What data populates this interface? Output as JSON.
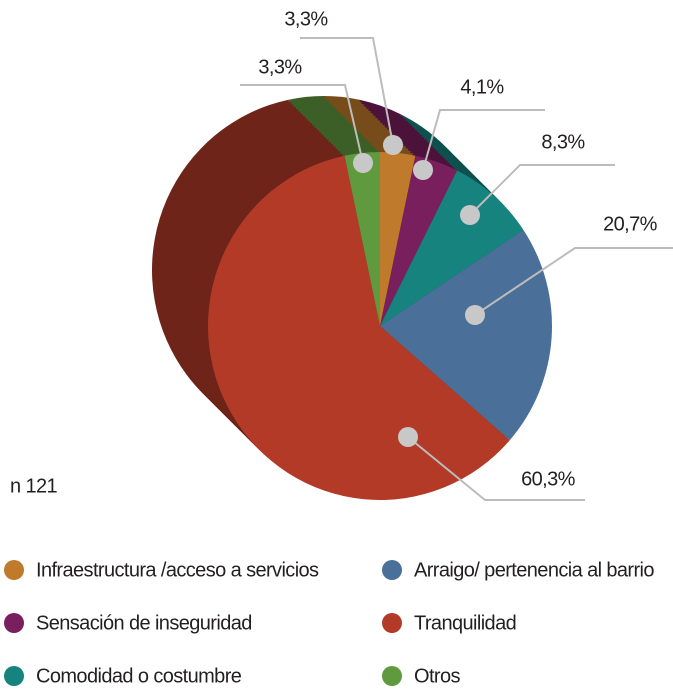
{
  "chart_data": {
    "type": "pie",
    "note": "n 121",
    "series": [
      {
        "name": "Infraestructura /acceso a servicios",
        "color": "#c07a2c",
        "values": [
          3.3
        ],
        "value_labels": [
          "3,3%"
        ]
      },
      {
        "name": "Sensación de inseguridad",
        "color": "#7a1f5e",
        "values": [
          4.1
        ],
        "value_labels": [
          "4,1%"
        ]
      },
      {
        "name": "Comodidad o costumbre",
        "color": "#16837e",
        "values": [
          8.3
        ],
        "value_labels": [
          "8,3%"
        ]
      },
      {
        "name": "Arraigo/ pertenencia al barrio",
        "color": "#4a6f98",
        "values": [
          20.7
        ],
        "value_labels": [
          "20,7%"
        ]
      },
      {
        "name": "Tranquilidad",
        "color": "#b23a27",
        "values": [
          60.3
        ],
        "value_labels": [
          "60,3%"
        ]
      },
      {
        "name": "Otros",
        "color": "#5f9a3e",
        "values": [
          3.3
        ],
        "value_labels": [
          "3,3%"
        ]
      }
    ]
  }
}
